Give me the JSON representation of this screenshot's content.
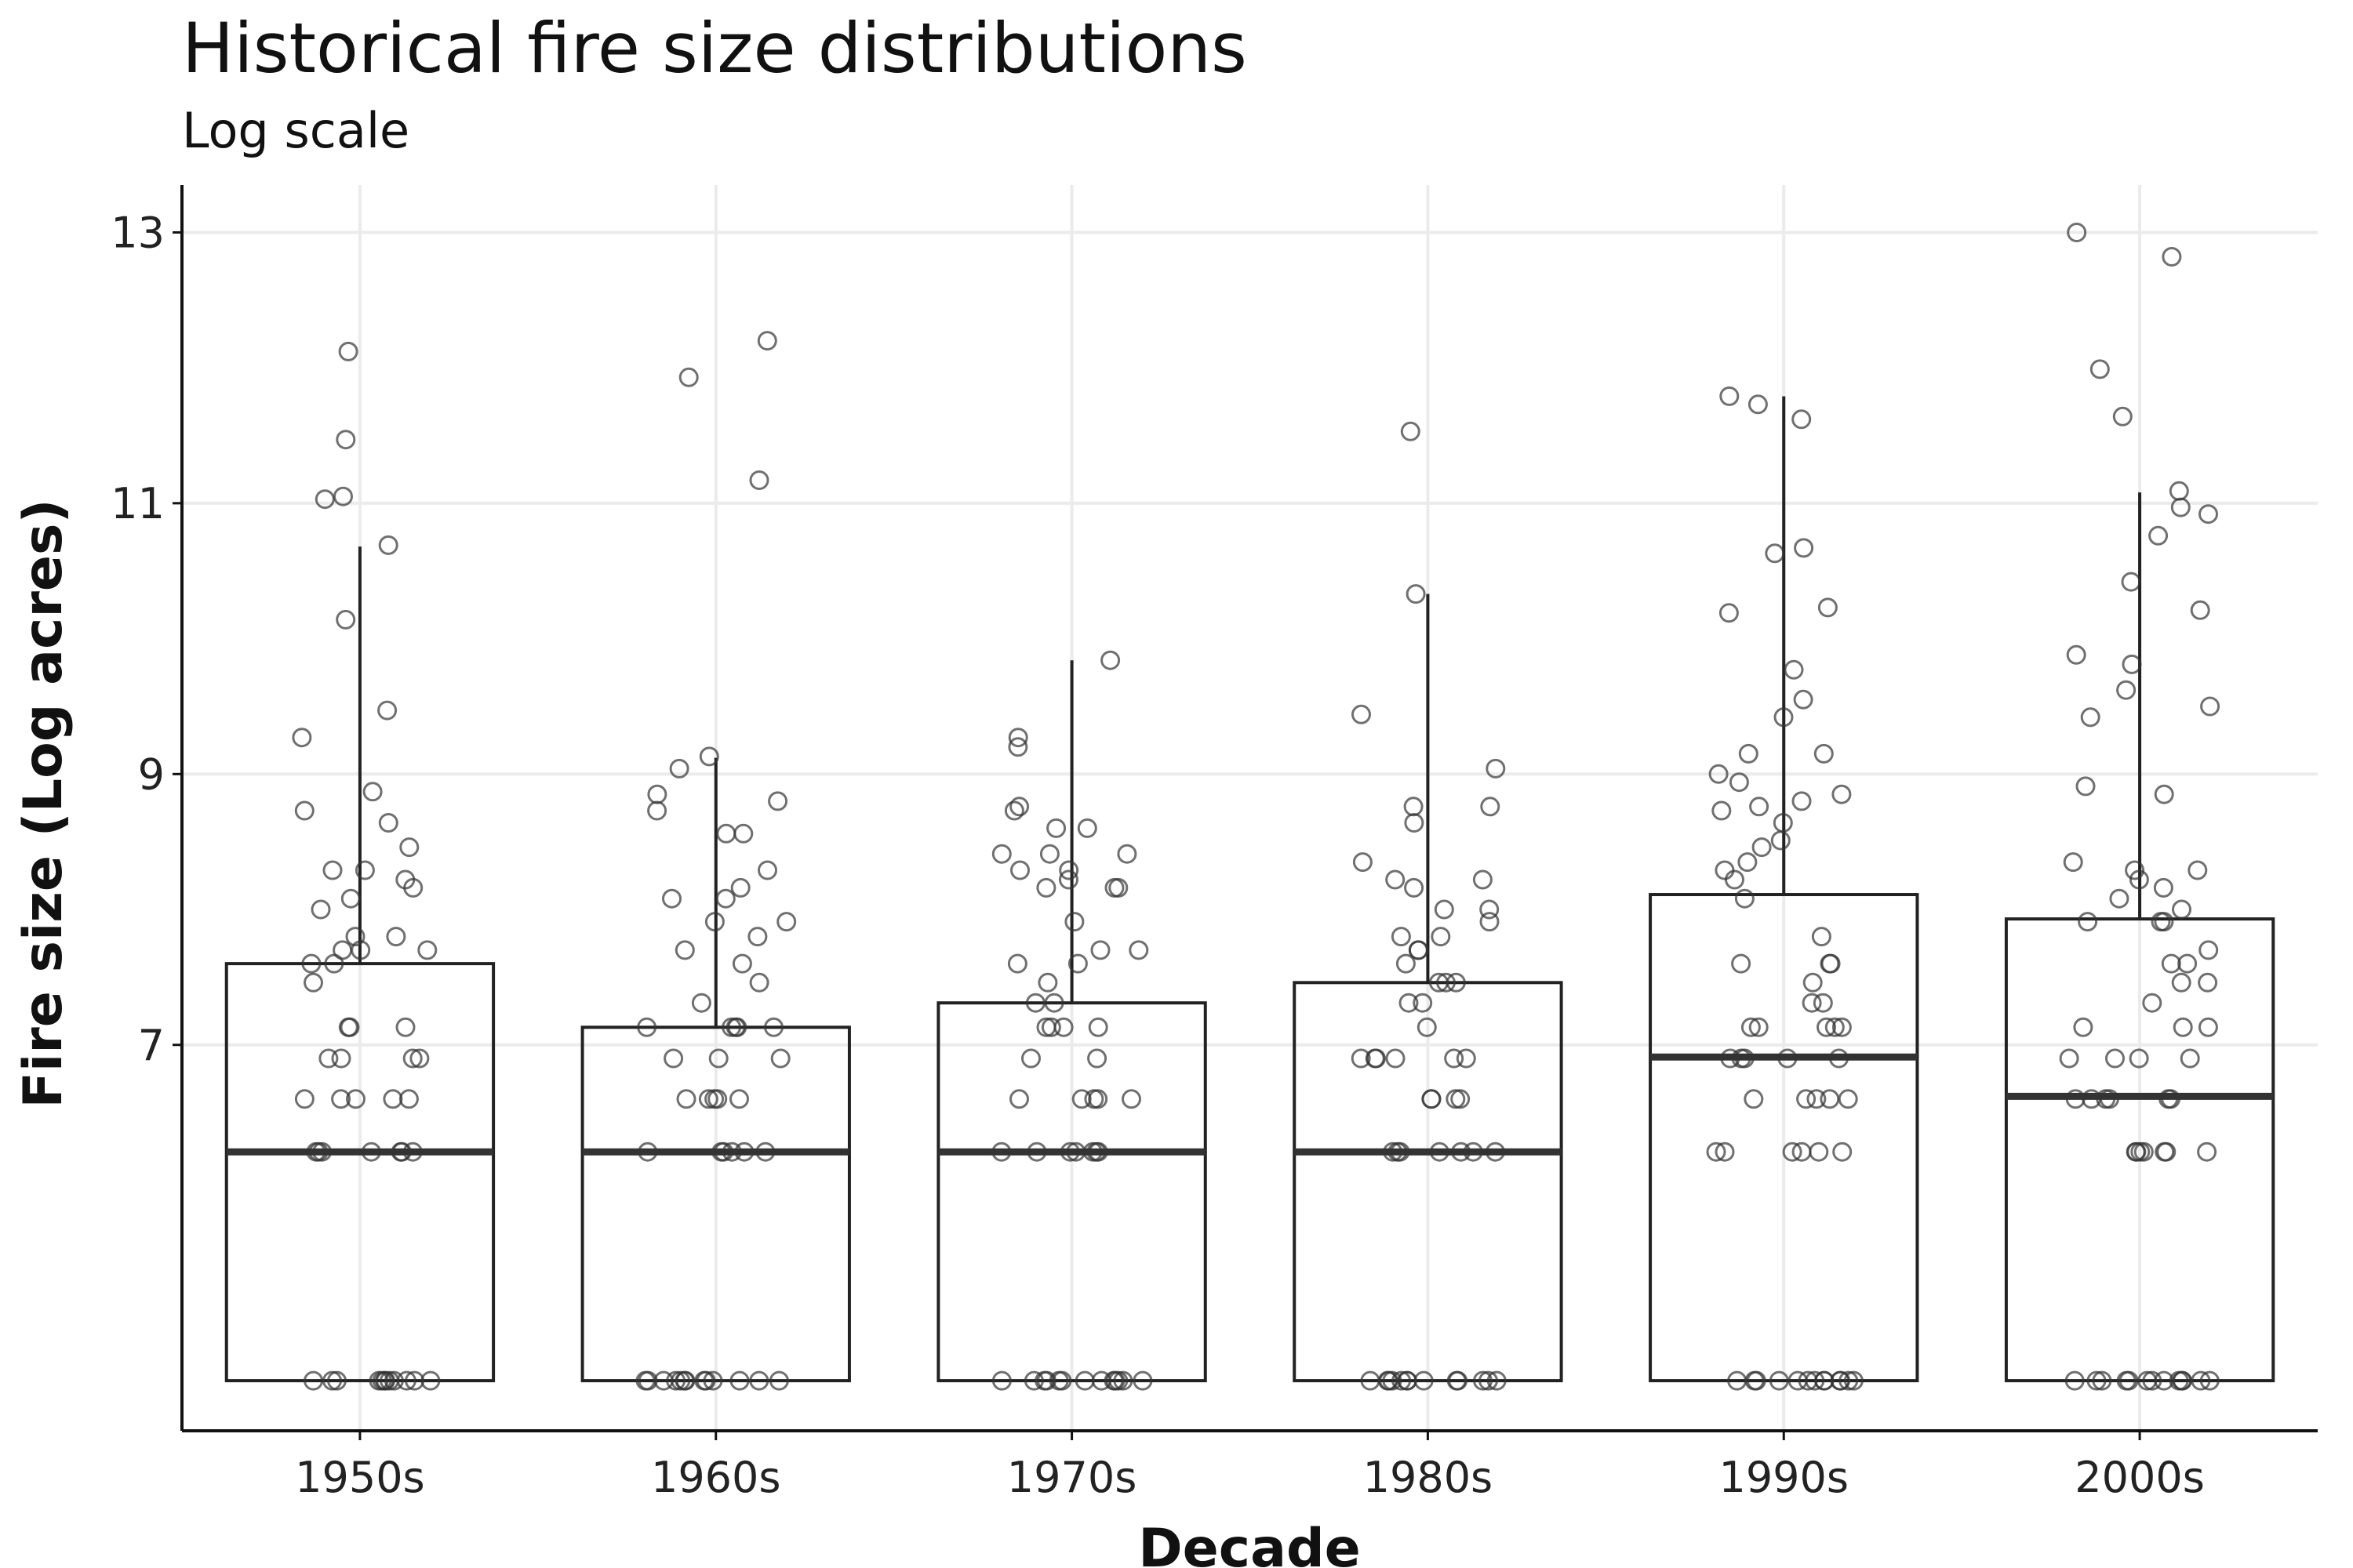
{
  "chart_data": {
    "type": "boxplot",
    "title": "Historical fire size distributions",
    "subtitle": "Log scale",
    "xlabel": "Decade",
    "ylabel": "Fire size (Log acres)",
    "categories": [
      "1950s",
      "1960s",
      "1970s",
      "1980s",
      "1990s",
      "2000s"
    ],
    "yticks": [
      7,
      9,
      11,
      13
    ],
    "ylim": [
      4.15,
      13.35
    ],
    "grid": true,
    "boxes": [
      {
        "category": "1950s",
        "min": 4.52,
        "q1": 4.52,
        "median": 6.21,
        "q3": 7.6,
        "max": 10.68
      },
      {
        "category": "1960s",
        "min": 4.52,
        "q1": 4.52,
        "median": 6.21,
        "q3": 7.13,
        "max": 9.12
      },
      {
        "category": "1970s",
        "min": 4.52,
        "q1": 4.52,
        "median": 6.21,
        "q3": 7.31,
        "max": 9.84
      },
      {
        "category": "1980s",
        "min": 4.52,
        "q1": 4.52,
        "median": 6.21,
        "q3": 7.46,
        "max": 10.33
      },
      {
        "category": "1990s",
        "min": 4.52,
        "q1": 4.52,
        "median": 6.91,
        "q3": 8.11,
        "max": 11.79
      },
      {
        "category": "2000s",
        "min": 4.52,
        "q1": 4.52,
        "median": 6.62,
        "q3": 7.93,
        "max": 11.08
      }
    ],
    "points": [
      [
        4.52,
        4.52,
        4.52,
        4.52,
        4.52,
        4.52,
        4.52,
        4.52,
        4.52,
        4.52,
        4.52,
        4.52,
        6.21,
        6.21,
        6.21,
        6.21,
        6.21,
        6.21,
        6.21,
        6.6,
        6.6,
        6.6,
        6.6,
        6.6,
        6.9,
        6.9,
        6.9,
        6.9,
        7.13,
        7.13,
        7.13,
        7.46,
        7.6,
        7.6,
        7.7,
        7.7,
        7.7,
        7.8,
        7.8,
        8.0,
        8.08,
        8.16,
        8.22,
        8.29,
        8.29,
        8.46,
        8.64,
        8.73,
        8.87,
        9.27,
        9.47,
        10.14,
        10.69,
        11.03,
        11.05,
        11.47,
        12.12
      ],
      [
        4.52,
        4.52,
        4.52,
        4.52,
        4.52,
        4.52,
        4.52,
        4.52,
        4.52,
        4.52,
        4.52,
        4.52,
        4.52,
        6.21,
        6.21,
        6.21,
        6.21,
        6.21,
        6.21,
        6.6,
        6.6,
        6.6,
        6.6,
        6.6,
        6.9,
        6.9,
        6.9,
        7.13,
        7.13,
        7.13,
        7.13,
        7.13,
        7.31,
        7.46,
        7.6,
        7.7,
        7.8,
        7.91,
        7.91,
        8.08,
        8.08,
        8.16,
        8.29,
        8.56,
        8.56,
        8.73,
        8.8,
        8.85,
        9.04,
        9.13,
        11.17,
        11.93,
        12.2
      ],
      [
        4.52,
        4.52,
        4.52,
        4.52,
        4.52,
        4.52,
        4.52,
        4.52,
        4.52,
        4.52,
        4.52,
        4.52,
        4.52,
        6.21,
        6.21,
        6.21,
        6.21,
        6.21,
        6.21,
        6.21,
        6.6,
        6.6,
        6.6,
        6.6,
        6.6,
        6.9,
        6.9,
        7.13,
        7.13,
        7.13,
        7.13,
        7.31,
        7.31,
        7.46,
        7.6,
        7.6,
        7.7,
        7.7,
        7.91,
        8.16,
        8.16,
        8.16,
        8.22,
        8.29,
        8.29,
        8.41,
        8.41,
        8.41,
        8.6,
        8.6,
        8.73,
        8.76,
        9.2,
        9.27,
        9.84
      ],
      [
        4.52,
        4.52,
        4.52,
        4.52,
        4.52,
        4.52,
        4.52,
        4.52,
        4.52,
        4.52,
        4.52,
        4.52,
        4.52,
        6.21,
        6.21,
        6.21,
        6.21,
        6.21,
        6.21,
        6.21,
        6.6,
        6.6,
        6.6,
        6.6,
        6.9,
        6.9,
        6.9,
        6.9,
        6.9,
        6.9,
        7.13,
        7.31,
        7.31,
        7.46,
        7.46,
        7.46,
        7.6,
        7.7,
        7.7,
        7.8,
        7.8,
        7.91,
        8.0,
        8.0,
        8.16,
        8.22,
        8.22,
        8.35,
        8.64,
        8.76,
        8.76,
        9.04,
        9.44,
        10.33,
        11.53
      ],
      [
        4.52,
        4.52,
        4.52,
        4.52,
        4.52,
        4.52,
        4.52,
        4.52,
        4.52,
        4.52,
        4.52,
        4.52,
        4.52,
        6.21,
        6.21,
        6.21,
        6.21,
        6.21,
        6.21,
        6.6,
        6.6,
        6.6,
        6.6,
        6.6,
        6.9,
        6.9,
        6.9,
        6.9,
        6.9,
        7.13,
        7.13,
        7.13,
        7.13,
        7.13,
        7.31,
        7.31,
        7.46,
        7.6,
        7.6,
        7.6,
        7.8,
        8.08,
        8.22,
        8.29,
        8.35,
        8.46,
        8.51,
        8.64,
        8.73,
        8.76,
        8.8,
        8.85,
        8.94,
        9.0,
        9.15,
        9.15,
        9.42,
        9.55,
        9.77,
        10.19,
        10.23,
        10.63,
        10.67,
        11.62,
        11.73,
        11.79
      ],
      [
        4.52,
        4.52,
        4.52,
        4.52,
        4.52,
        4.52,
        4.52,
        4.52,
        4.52,
        4.52,
        4.52,
        4.52,
        4.52,
        6.21,
        6.21,
        6.21,
        6.21,
        6.21,
        6.21,
        6.21,
        6.6,
        6.6,
        6.6,
        6.6,
        6.6,
        6.6,
        6.9,
        6.9,
        6.9,
        6.9,
        7.13,
        7.13,
        7.13,
        7.31,
        7.46,
        7.46,
        7.6,
        7.6,
        7.7,
        7.91,
        7.91,
        7.91,
        8.0,
        8.08,
        8.16,
        8.22,
        8.29,
        8.29,
        8.35,
        8.85,
        8.91,
        9.42,
        9.5,
        9.62,
        9.81,
        9.88,
        10.21,
        10.42,
        10.76,
        10.92,
        10.97,
        11.09,
        11.64,
        11.99,
        12.82,
        13.0
      ]
    ]
  }
}
